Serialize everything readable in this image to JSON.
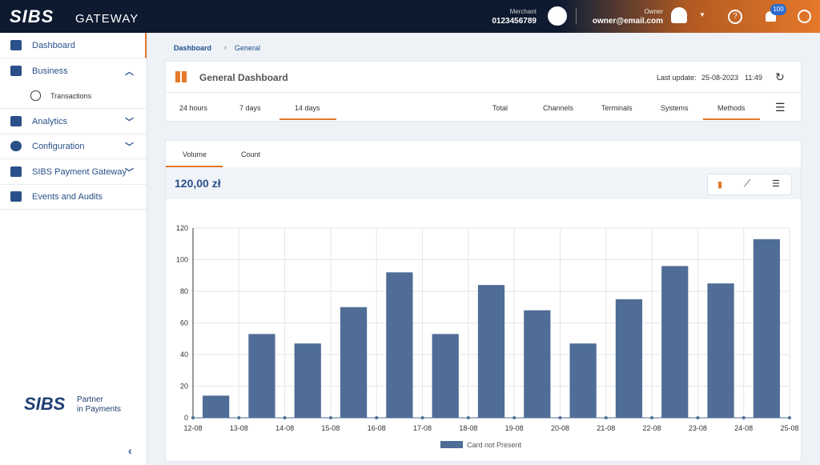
{
  "header": {
    "logo": "SIBS",
    "product": "GATEWAY",
    "merchant_label": "Merchant",
    "merchant_id": "0123456789",
    "owner_label": "Owner",
    "owner_email": "owner@email.com",
    "notifications": "100"
  },
  "sidebar": {
    "items": [
      "Dashboard",
      "Business",
      "Transactions",
      "Analytics",
      "Configuration",
      "SIBS Payment Gateway",
      "Events and Audits"
    ],
    "partner_logo": "SIBS",
    "partner_text": [
      "Partner",
      "in Payments"
    ]
  },
  "breadcrumb": [
    "Dashboard",
    "General"
  ],
  "dashboard": {
    "title": "General Dashboard",
    "last_update_label": "Last update:",
    "last_update_date": "25-08-2023",
    "last_update_time": "11:49",
    "periods": [
      "24 hours",
      "7 days",
      "14 days"
    ],
    "views": [
      "Total",
      "Channels",
      "Terminals",
      "Systems",
      "Methods"
    ]
  },
  "chart_tabs": [
    "Volume",
    "Count"
  ],
  "total": "120,00 zł",
  "chart_data": {
    "type": "bar",
    "categories": [
      "12-08",
      "13-08",
      "14-08",
      "15-08",
      "16-08",
      "17-08",
      "18-08",
      "19-08",
      "20-08",
      "21-08",
      "22-08",
      "23-08",
      "24-08",
      "25-08"
    ],
    "series": [
      {
        "name": "Card not Present",
        "color": "#4f6d96",
        "values": [
          null,
          14,
          53,
          47,
          70,
          92,
          53,
          84,
          68,
          47,
          75,
          96,
          85,
          113
        ]
      }
    ],
    "ylim": [
      0,
      120
    ],
    "yticks": [
      0,
      20,
      40,
      60,
      80,
      100,
      120
    ],
    "grid": true
  }
}
